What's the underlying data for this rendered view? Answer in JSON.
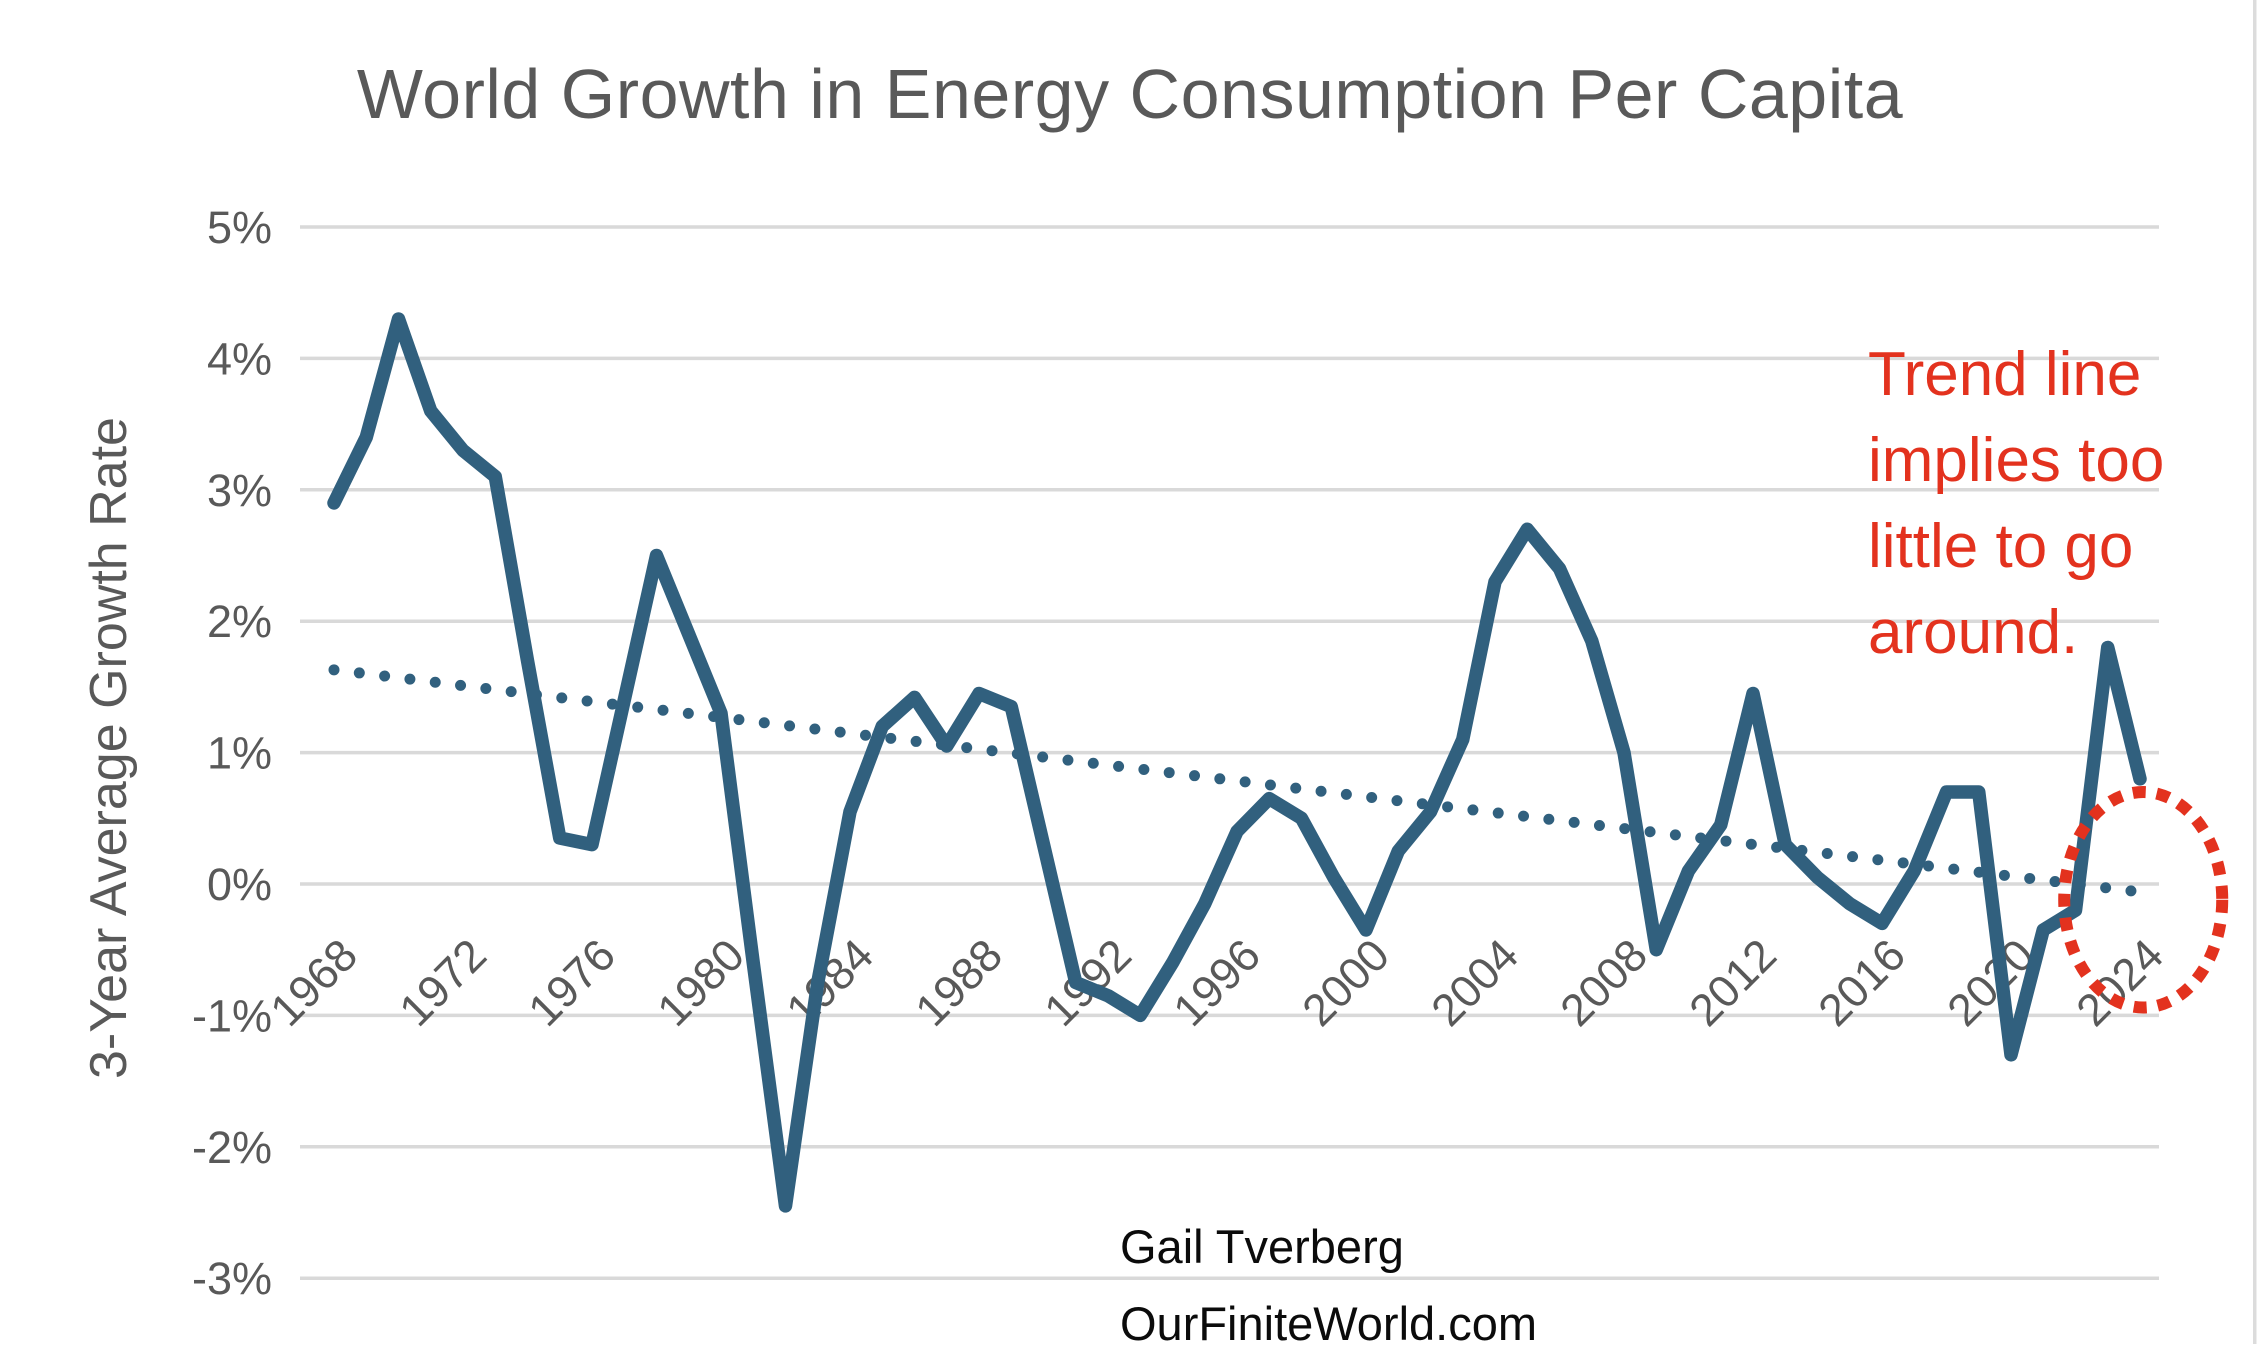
{
  "title": "World Growth in Energy Consumption Per Capita",
  "y_axis": {
    "label": "3-Year Average Growth Rate",
    "tick_labels": [
      "5%",
      "4%",
      "3%",
      "2%",
      "1%",
      "0%",
      "-1%",
      "-2%",
      "-3%"
    ],
    "tick_values": [
      5,
      4,
      3,
      2,
      1,
      0,
      -1,
      -2,
      -3
    ]
  },
  "x_axis": {
    "tick_years": [
      1968,
      1972,
      1976,
      1980,
      1984,
      1988,
      1992,
      1996,
      2000,
      2004,
      2008,
      2012,
      2016,
      2020,
      2024
    ]
  },
  "annotation": {
    "lines": [
      "Trend line",
      "implies too",
      "little to go",
      "around."
    ]
  },
  "attribution": {
    "line1": "Gail Tverberg",
    "line2": "OurFiniteWorld.com"
  },
  "colors": {
    "series_blue": "#31607e",
    "trend_blue": "#31607e",
    "annotation_red": "#e3321e",
    "gridline_gray": "#d9d9d9",
    "axis_text_gray": "#595959",
    "attribution_black": "#0b0b0b",
    "edge_gray": "#dcdcdc"
  },
  "chart_data": {
    "type": "line",
    "title": "World Growth in Energy Consumption Per Capita",
    "xlabel": "",
    "ylabel": "3-Year Average Growth Rate",
    "ylim": [
      -3,
      5
    ],
    "grid": "horizontal",
    "legend_position": "none",
    "x": [
      1968,
      1969,
      1970,
      1971,
      1972,
      1973,
      1974,
      1975,
      1976,
      1977,
      1978,
      1979,
      1980,
      1981,
      1982,
      1983,
      1984,
      1985,
      1986,
      1987,
      1988,
      1989,
      1990,
      1991,
      1992,
      1993,
      1994,
      1995,
      1996,
      1997,
      1998,
      1999,
      2000,
      2001,
      2002,
      2003,
      2004,
      2005,
      2006,
      2007,
      2008,
      2009,
      2010,
      2011,
      2012,
      2013,
      2014,
      2015,
      2016,
      2017,
      2018,
      2019,
      2020,
      2021,
      2022,
      2023,
      2024
    ],
    "series": [
      {
        "name": "World growth in energy consumption per capita, 3-year average (%)",
        "values": [
          2.9,
          3.4,
          4.3,
          3.6,
          3.3,
          3.1,
          1.7,
          0.35,
          0.3,
          1.4,
          2.5,
          1.9,
          1.3,
          -0.6,
          -2.45,
          -0.75,
          0.55,
          1.2,
          1.42,
          1.05,
          1.45,
          1.35,
          0.3,
          -0.75,
          -0.85,
          -1.0,
          -0.6,
          -0.15,
          0.4,
          0.65,
          0.5,
          0.05,
          -0.35,
          0.25,
          0.55,
          1.1,
          2.3,
          2.7,
          2.4,
          1.85,
          1.0,
          -0.5,
          0.1,
          0.45,
          1.45,
          0.3,
          0.05,
          -0.15,
          -0.3,
          0.1,
          0.7,
          0.7,
          -1.3,
          -0.35,
          -0.2,
          1.8,
          0.8
        ]
      }
    ],
    "trendline": {
      "style": "dotted",
      "start_year": 1968,
      "start_value": 1.63,
      "end_year": 2024.3,
      "end_value": -0.07
    },
    "highlight_ellipse": {
      "style": "dashed-red",
      "center_year": 2024.1,
      "center_value": -0.12,
      "radius_years": 2.45,
      "radius_value": 0.82
    }
  }
}
